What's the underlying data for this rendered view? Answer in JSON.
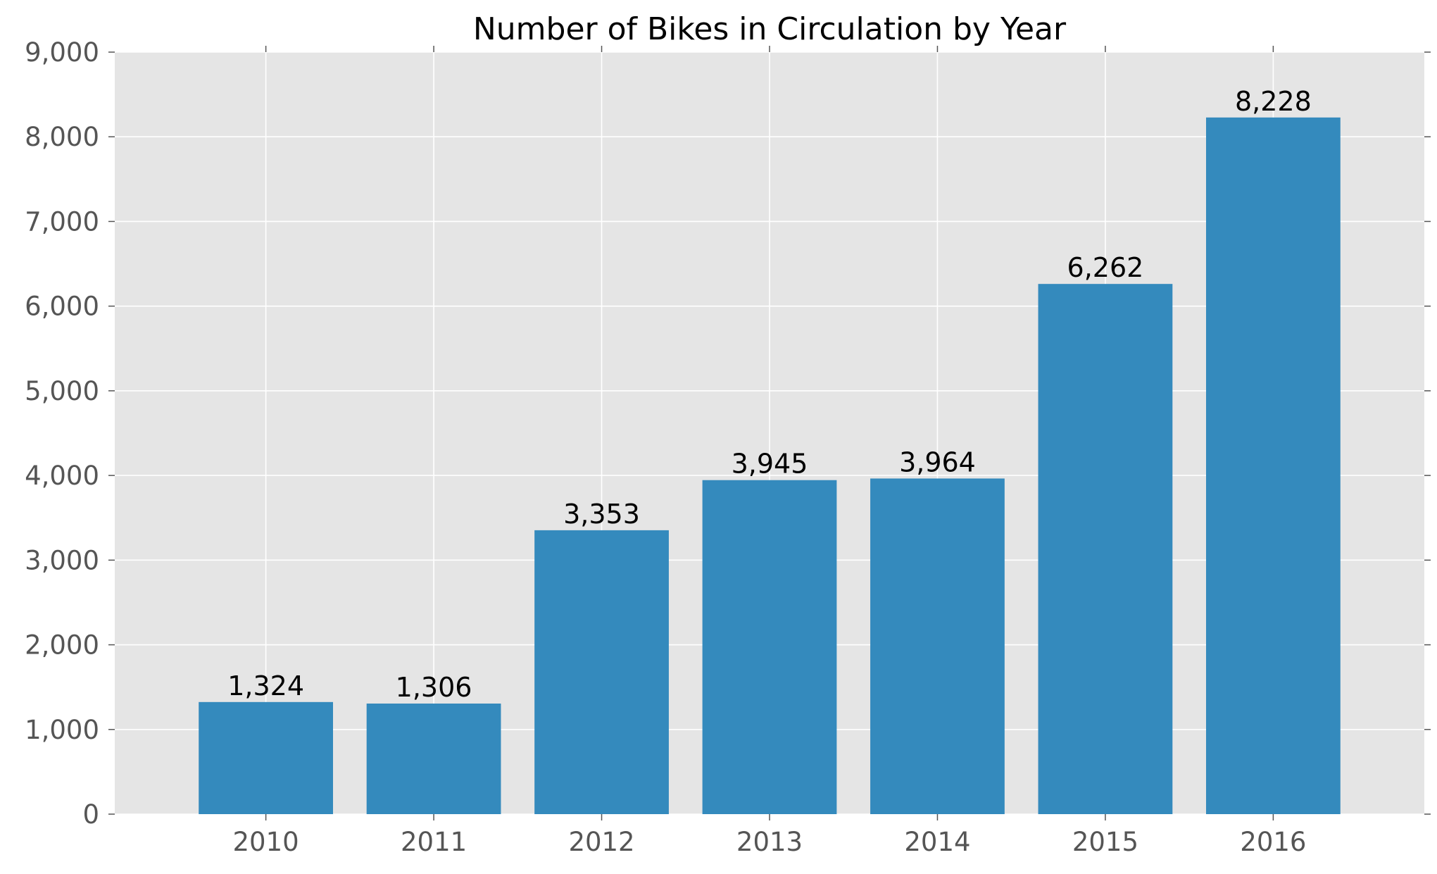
{
  "chart_data": {
    "type": "bar",
    "title": "Number of Bikes in Circulation by Year",
    "xlabel": "",
    "ylabel": "",
    "categories": [
      "2010",
      "2011",
      "2012",
      "2013",
      "2014",
      "2015",
      "2016"
    ],
    "values": [
      1324,
      1306,
      3353,
      3945,
      3964,
      6262,
      8228
    ],
    "value_labels": [
      "1,324",
      "1,306",
      "3,353",
      "3,945",
      "3,964",
      "6,262",
      "8,228"
    ],
    "ylim": [
      0,
      9000
    ],
    "yticks": [
      0,
      1000,
      2000,
      3000,
      4000,
      5000,
      6000,
      7000,
      8000,
      9000
    ],
    "ytick_labels": [
      "0",
      "1,000",
      "2,000",
      "3,000",
      "4,000",
      "5,000",
      "6,000",
      "7,000",
      "8,000",
      "9,000"
    ],
    "grid": true,
    "legend": "none",
    "colors": {
      "bar": "#348abd",
      "background": "#e5e5e5",
      "grid": "#ffffff",
      "tick_text": "#555555"
    }
  }
}
